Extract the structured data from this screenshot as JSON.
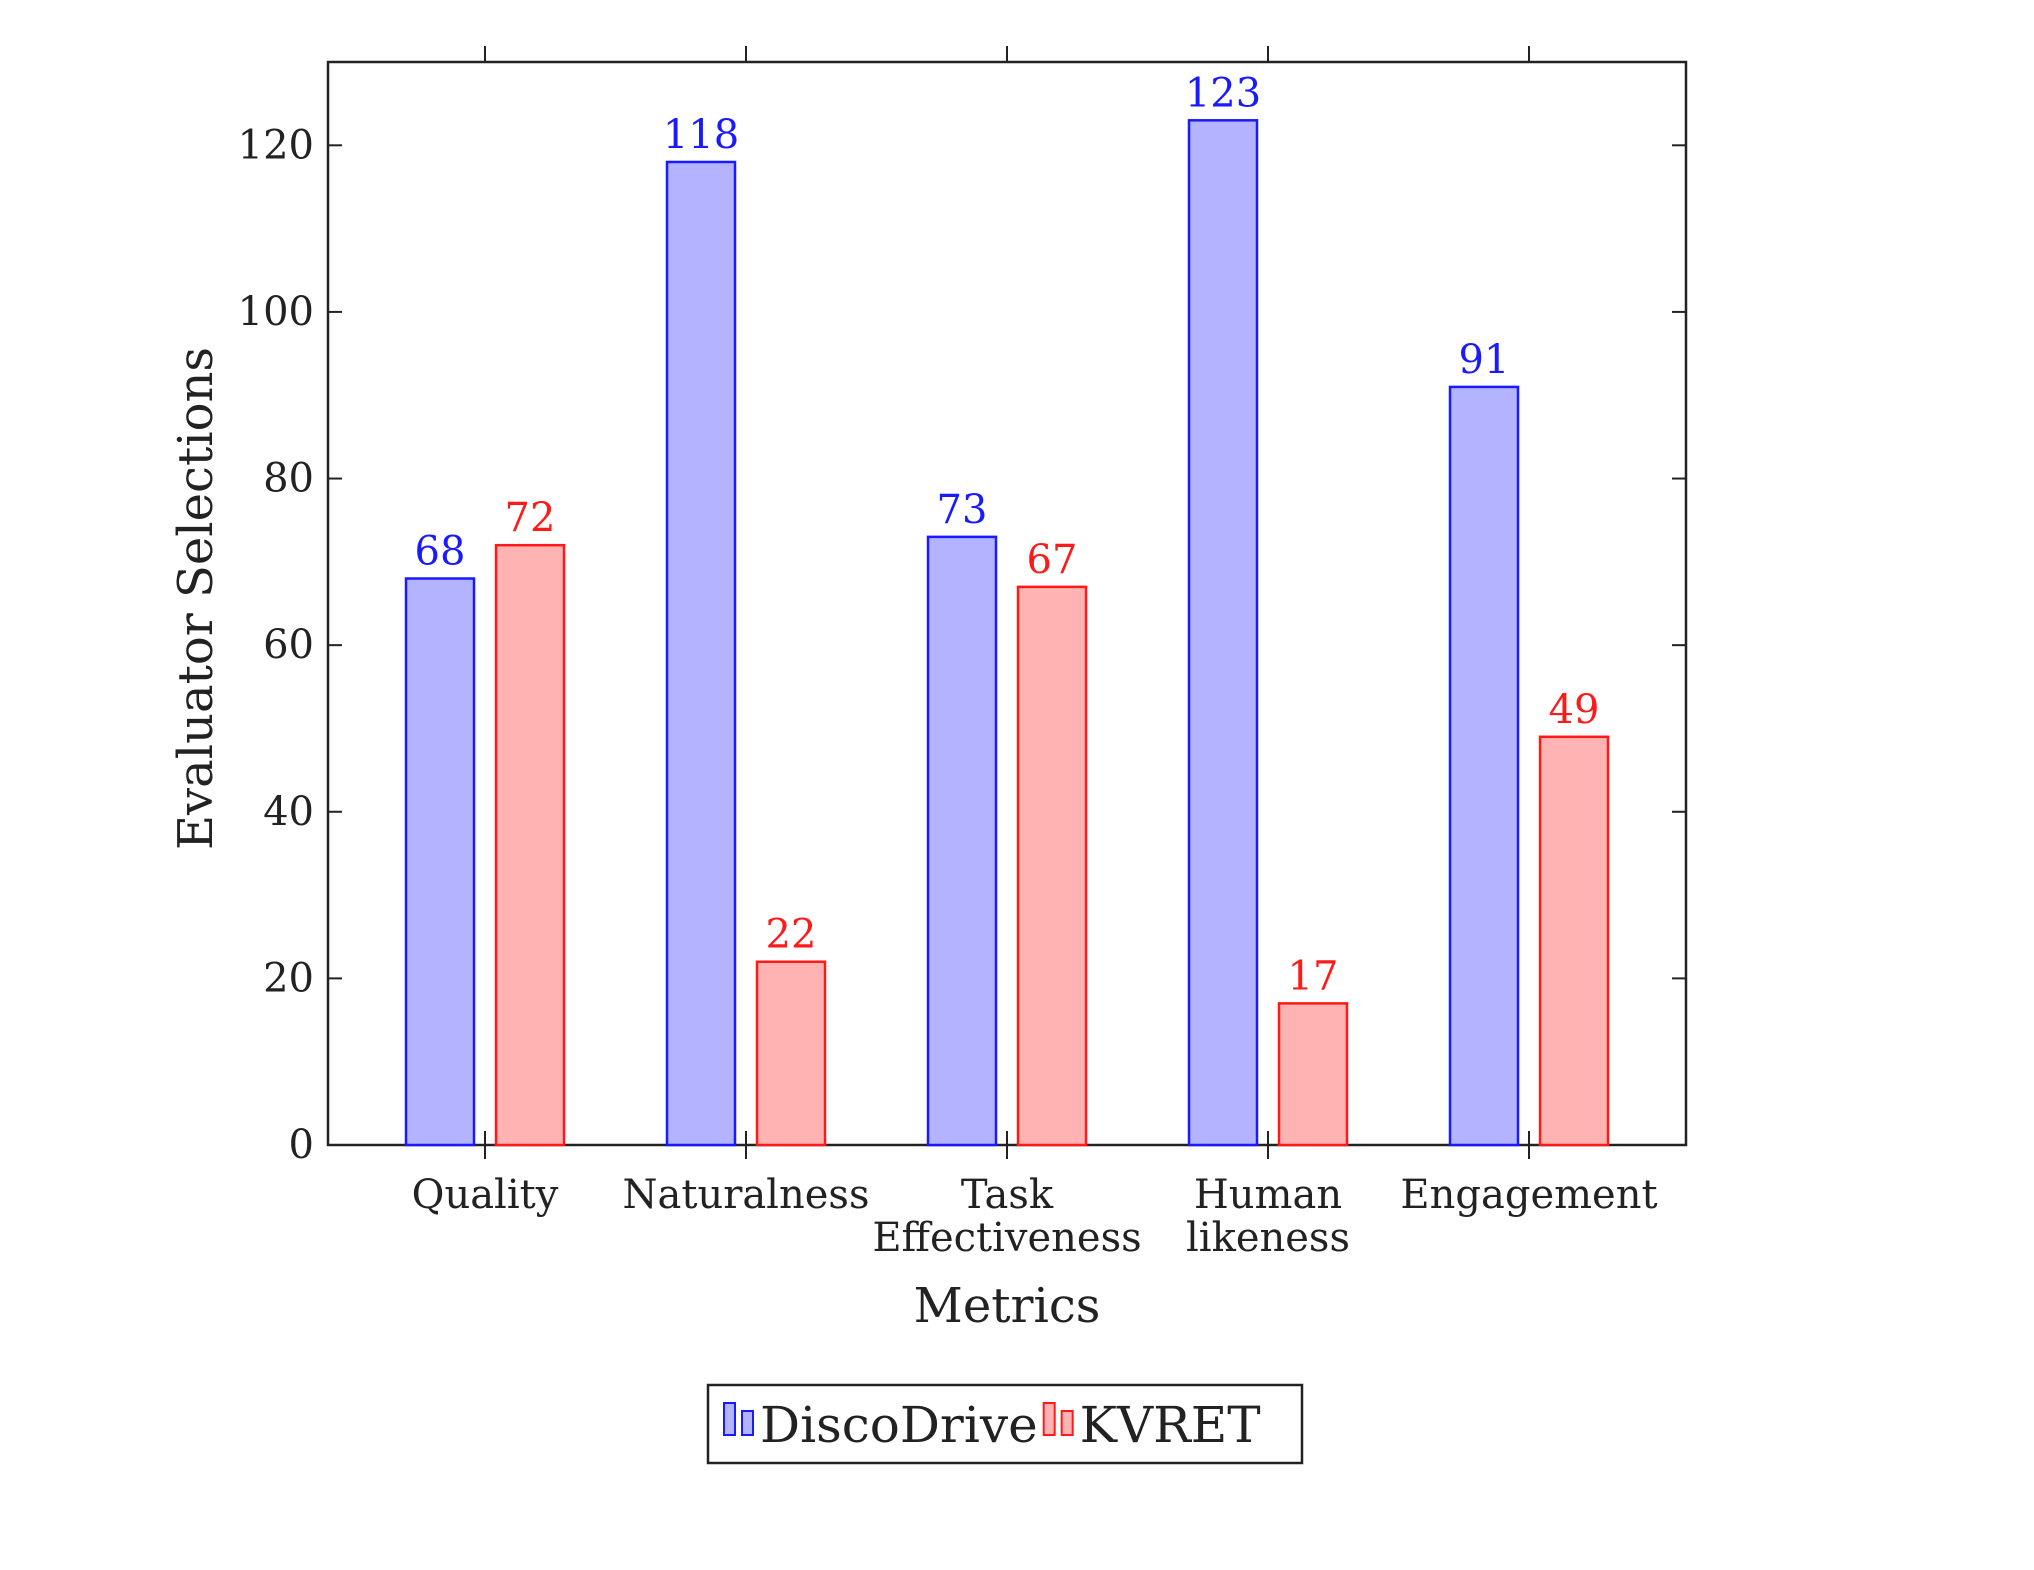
{
  "chart_data": {
    "type": "bar",
    "title": "",
    "xlabel": "Metrics",
    "ylabel": "Evaluator Selections",
    "ylim": [
      0,
      130
    ],
    "yticks": [
      0,
      20,
      40,
      60,
      80,
      100,
      120
    ],
    "categories": [
      [
        "Quality"
      ],
      [
        "Naturalness"
      ],
      [
        "Task",
        "Effectiveness"
      ],
      [
        "Human",
        "likeness"
      ],
      [
        "Engagement"
      ]
    ],
    "series": [
      {
        "name": "DiscoDrive",
        "values": [
          68,
          118,
          73,
          123,
          91
        ],
        "fill": "#b3b3ff",
        "stroke": "#1a1aff",
        "label_color": "#1a1aff"
      },
      {
        "name": "KVRET",
        "values": [
          72,
          22,
          67,
          17,
          49
        ],
        "fill": "#ffb3b3",
        "stroke": "#ff1a1a",
        "label_color": "#ff1a1a"
      }
    ],
    "grid": false,
    "legend_position": "bottom-center",
    "bar_value_labels": true
  }
}
